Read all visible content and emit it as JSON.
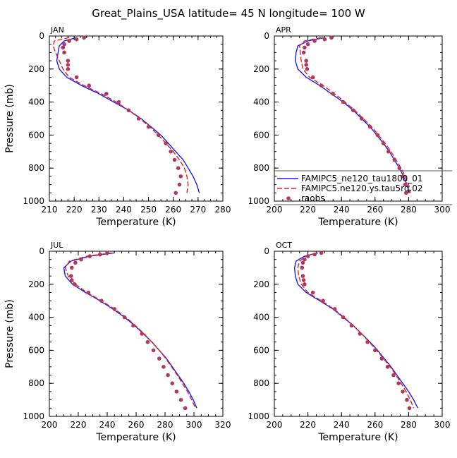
{
  "figure_title": "Great_Plains_USA   latitude= 45 N longitude= 100 W",
  "colors": {
    "model1": "#1a1aff",
    "model2": "#e02020",
    "raobs": "#b03a5a",
    "axis": "#000000"
  },
  "legend": {
    "entries": [
      {
        "label": "FAMIPC5_ne120_tau1800_01",
        "style": "solid-line",
        "color": "#1a1aff"
      },
      {
        "label": "FAMIPC5.ne120.ys.tau5rq.02",
        "style": "dashed-line",
        "color": "#e02020"
      },
      {
        "label": "raobs",
        "style": "dots",
        "color": "#b03a5a"
      }
    ]
  },
  "chart_data": [
    {
      "type": "line",
      "panel": "JAN",
      "xlabel": "Temperature (K)",
      "ylabel": "Pressure (mb)",
      "xlim": [
        210,
        280
      ],
      "ylim": [
        1000,
        0
      ],
      "xticks": [
        210,
        220,
        230,
        240,
        250,
        260,
        270,
        280
      ],
      "yticks": [
        0,
        200,
        400,
        600,
        800,
        1000
      ],
      "series": [
        {
          "name": "FAMIPC5_ne120_tau1800_01",
          "style": "solid",
          "p": [
            10,
            30,
            60,
            100,
            150,
            200,
            250,
            300,
            350,
            400,
            450,
            500,
            550,
            600,
            650,
            700,
            750,
            800,
            850,
            900,
            950
          ],
          "t": [
            221,
            216,
            214,
            213.5,
            213,
            214,
            217,
            223,
            230,
            236,
            242,
            247,
            251,
            255,
            258,
            261,
            264,
            266,
            268,
            269.5,
            270.5
          ]
        },
        {
          "name": "FAMIPC5.ne120.ys.tau5rq.02",
          "style": "dashed",
          "p": [
            10,
            30,
            60,
            100,
            150,
            200,
            250,
            300,
            350,
            400,
            450,
            500,
            550,
            600,
            650,
            700,
            750,
            800,
            850,
            900,
            950
          ],
          "t": [
            218,
            212,
            211.5,
            212.5,
            214,
            215.5,
            218,
            224,
            231,
            237,
            242,
            246.5,
            250.5,
            254,
            257,
            260,
            262.5,
            264.5,
            265.5,
            266,
            265.5
          ]
        },
        {
          "name": "raobs",
          "style": "dots",
          "p": [
            10,
            20,
            30,
            50,
            70,
            100,
            150,
            175,
            200,
            250,
            300,
            350,
            400,
            450,
            500,
            550,
            600,
            650,
            700,
            750,
            800,
            850,
            900,
            950
          ],
          "t": [
            224,
            221,
            218,
            216,
            215.5,
            216,
            217.5,
            217.5,
            217.5,
            221,
            226,
            233,
            238,
            242,
            246,
            250,
            254,
            257,
            259,
            260.5,
            262,
            263,
            262.5,
            261
          ]
        }
      ]
    },
    {
      "type": "line",
      "panel": "APR",
      "xlabel": "Temperature (K)",
      "ylabel": "Pressure (mb)",
      "xlim": [
        200,
        300
      ],
      "ylim": [
        1000,
        0
      ],
      "xticks": [
        200,
        220,
        240,
        260,
        280,
        300
      ],
      "yticks": [
        0,
        200,
        400,
        600,
        800,
        1000
      ],
      "series": [
        {
          "name": "FAMIPC5_ne120_tau1800_01",
          "style": "solid",
          "p": [
            10,
            30,
            60,
            100,
            150,
            200,
            250,
            300,
            350,
            400,
            450,
            500,
            550,
            600,
            650,
            700,
            750,
            800,
            850,
            900,
            950
          ],
          "t": [
            230,
            220,
            214,
            213,
            212.5,
            214,
            219,
            227,
            234,
            241,
            247,
            252,
            257,
            261,
            265,
            268.5,
            271.5,
            274.5,
            277,
            279,
            280.5
          ]
        },
        {
          "name": "FAMIPC5.ne120.ys.tau5rq.02",
          "style": "dashed",
          "p": [
            10,
            30,
            60,
            100,
            150,
            200,
            250,
            300,
            350,
            400,
            450,
            500,
            550,
            600,
            650,
            700,
            750,
            800,
            850,
            900,
            950
          ],
          "t": [
            228,
            218,
            215,
            215.5,
            216,
            217,
            221,
            229,
            236,
            242,
            248,
            253,
            258,
            262,
            266,
            269.5,
            272.5,
            275.5,
            278,
            280,
            281
          ]
        },
        {
          "name": "raobs",
          "style": "dots",
          "p": [
            10,
            20,
            30,
            50,
            70,
            100,
            150,
            175,
            200,
            250,
            300,
            350,
            400,
            450,
            500,
            550,
            600,
            650,
            700,
            750,
            800,
            850,
            900,
            950
          ],
          "t": [
            234,
            230,
            224,
            220,
            218,
            217.5,
            219,
            219,
            219.5,
            223,
            228,
            235,
            241,
            247,
            252,
            257,
            261.5,
            265,
            268,
            271.5,
            274.5,
            276.5,
            278,
            278.5
          ]
        }
      ]
    },
    {
      "type": "line",
      "panel": "JUL",
      "xlabel": "Temperature (K)",
      "ylabel": "Pressure (mb)",
      "xlim": [
        200,
        320
      ],
      "ylim": [
        1000,
        0
      ],
      "xticks": [
        200,
        220,
        240,
        260,
        280,
        300,
        320
      ],
      "yticks": [
        0,
        200,
        400,
        600,
        800,
        1000
      ],
      "series": [
        {
          "name": "FAMIPC5_ne120_tau1800_01",
          "style": "solid",
          "p": [
            10,
            30,
            60,
            100,
            150,
            200,
            250,
            300,
            350,
            400,
            450,
            500,
            550,
            600,
            650,
            700,
            750,
            800,
            850,
            900,
            950
          ],
          "t": [
            245,
            228,
            215,
            210,
            211,
            216,
            225,
            235,
            244,
            252,
            259,
            265,
            271,
            276,
            281,
            285,
            289,
            293,
            296.5,
            299.5,
            302
          ]
        },
        {
          "name": "FAMIPC5.ne120.ys.tau5rq.02",
          "style": "dashed",
          "p": [
            10,
            30,
            60,
            100,
            150,
            200,
            250,
            300,
            350,
            400,
            450,
            500,
            550,
            600,
            650,
            700,
            750,
            800,
            850,
            900,
            950
          ],
          "t": [
            243,
            226,
            214,
            211,
            213,
            218,
            226,
            236,
            245,
            253,
            259.5,
            265.5,
            271,
            276,
            280.5,
            284.5,
            288.5,
            292,
            295.5,
            298.5,
            301
          ]
        },
        {
          "name": "raobs",
          "style": "dots",
          "p": [
            10,
            20,
            30,
            50,
            70,
            100,
            150,
            175,
            200,
            250,
            300,
            350,
            400,
            450,
            500,
            550,
            600,
            650,
            700,
            750,
            800,
            850,
            900,
            950
          ],
          "t": [
            240,
            235,
            228,
            222,
            218,
            215.5,
            215,
            215.5,
            217.5,
            227,
            236,
            245,
            252,
            258,
            264,
            268,
            272,
            276,
            279,
            282,
            285,
            288,
            291,
            294
          ]
        }
      ]
    },
    {
      "type": "line",
      "panel": "OCT",
      "xlabel": "Temperature (K)",
      "ylabel": "Pressure (mb)",
      "xlim": [
        200,
        300
      ],
      "ylim": [
        1000,
        0
      ],
      "xticks": [
        200,
        220,
        240,
        260,
        280,
        300
      ],
      "yticks": [
        0,
        200,
        400,
        600,
        800,
        1000
      ],
      "series": [
        {
          "name": "FAMIPC5_ne120_tau1800_01",
          "style": "solid",
          "p": [
            10,
            30,
            60,
            100,
            150,
            200,
            250,
            300,
            350,
            400,
            450,
            500,
            550,
            600,
            650,
            700,
            750,
            800,
            850,
            900,
            950
          ],
          "t": [
            226,
            218,
            213,
            212,
            212.5,
            214,
            219,
            227,
            235,
            241,
            247,
            252,
            257,
            261.5,
            265.5,
            269.5,
            273,
            276.5,
            280,
            283,
            285.5
          ]
        },
        {
          "name": "FAMIPC5.ne120.ys.tau5rq.02",
          "style": "dashed",
          "p": [
            10,
            30,
            60,
            100,
            150,
            200,
            250,
            300,
            350,
            400,
            450,
            500,
            550,
            600,
            650,
            700,
            750,
            800,
            850,
            900,
            950
          ],
          "t": [
            225,
            219,
            215,
            214,
            214.5,
            216,
            220,
            228,
            235.5,
            241.5,
            247,
            252,
            256.5,
            261,
            265,
            269,
            272.5,
            275.5,
            278.5,
            281,
            283
          ]
        },
        {
          "name": "raobs",
          "style": "dots",
          "p": [
            10,
            20,
            30,
            50,
            70,
            100,
            150,
            175,
            200,
            250,
            300,
            350,
            400,
            450,
            500,
            550,
            600,
            650,
            700,
            750,
            800,
            850,
            900,
            950
          ],
          "t": [
            228,
            224,
            220,
            218,
            217,
            216.5,
            217,
            217.5,
            218,
            223,
            229,
            236,
            241,
            246,
            251,
            255.5,
            260,
            264,
            267.5,
            271,
            274,
            276.5,
            279,
            280.5
          ]
        }
      ]
    }
  ]
}
